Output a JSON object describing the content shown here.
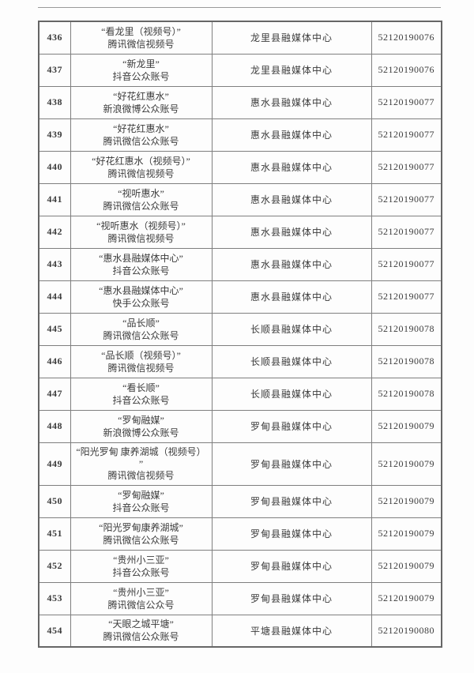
{
  "table": {
    "rows": [
      {
        "no": "436",
        "name_lines": [
          "“看龙里（视频号）”",
          "腾讯微信视频号"
        ],
        "organization": "龙里县融媒体中心",
        "license": "52120190076"
      },
      {
        "no": "437",
        "name_lines": [
          "“新龙里”",
          "抖音公众账号"
        ],
        "organization": "龙里县融媒体中心",
        "license": "52120190076"
      },
      {
        "no": "438",
        "name_lines": [
          "“好花红惠水”",
          "新浪微博公众账号"
        ],
        "organization": "惠水县融媒体中心",
        "license": "52120190077"
      },
      {
        "no": "439",
        "name_lines": [
          "“好花红惠水”",
          "腾讯微信公众账号"
        ],
        "organization": "惠水县融媒体中心",
        "license": "52120190077"
      },
      {
        "no": "440",
        "name_lines": [
          "“好花红惠水（视频号）”",
          "腾讯微信视频号"
        ],
        "organization": "惠水县融媒体中心",
        "license": "52120190077"
      },
      {
        "no": "441",
        "name_lines": [
          "“视听惠水”",
          "腾讯微信公众账号"
        ],
        "organization": "惠水县融媒体中心",
        "license": "52120190077"
      },
      {
        "no": "442",
        "name_lines": [
          "“视听惠水（视频号）”",
          "腾讯微信视频号"
        ],
        "organization": "惠水县融媒体中心",
        "license": "52120190077"
      },
      {
        "no": "443",
        "name_lines": [
          "“惠水县融媒体中心”",
          "抖音公众账号"
        ],
        "organization": "惠水县融媒体中心",
        "license": "52120190077"
      },
      {
        "no": "444",
        "name_lines": [
          "“惠水县融媒体中心”",
          "快手公众账号"
        ],
        "organization": "惠水县融媒体中心",
        "license": "52120190077"
      },
      {
        "no": "445",
        "name_lines": [
          "“品长顺”",
          "腾讯微信公众账号"
        ],
        "organization": "长顺县融媒体中心",
        "license": "52120190078"
      },
      {
        "no": "446",
        "name_lines": [
          "“品长顺（视频号）”",
          "腾讯微信视频号"
        ],
        "organization": "长顺县融媒体中心",
        "license": "52120190078"
      },
      {
        "no": "447",
        "name_lines": [
          "“看长顺”",
          "抖音公众账号"
        ],
        "organization": "长顺县融媒体中心",
        "license": "52120190078"
      },
      {
        "no": "448",
        "name_lines": [
          "“罗甸融媒”",
          "新浪微博公众账号"
        ],
        "organization": "罗甸县融媒体中心",
        "license": "52120190079"
      },
      {
        "no": "449",
        "name_lines": [
          "“阳光罗甸 康养湖城（视频号）",
          "”",
          "腾讯微信视频号"
        ],
        "organization": "罗甸县融媒体中心",
        "license": "52120190079"
      },
      {
        "no": "450",
        "name_lines": [
          "“罗甸融媒”",
          "抖音公众账号"
        ],
        "organization": "罗甸县融媒体中心",
        "license": "52120190079"
      },
      {
        "no": "451",
        "name_lines": [
          "“阳光罗甸康养湖城”",
          "腾讯微信公众账号"
        ],
        "organization": "罗甸县融媒体中心",
        "license": "52120190079"
      },
      {
        "no": "452",
        "name_lines": [
          "“贵州小三亚”",
          "抖音公众账号"
        ],
        "organization": "罗甸县融媒体中心",
        "license": "52120190079"
      },
      {
        "no": "453",
        "name_lines": [
          "“贵州小三亚”",
          "腾讯微信公众号"
        ],
        "organization": "罗甸县融媒体中心",
        "license": "52120190079"
      },
      {
        "no": "454",
        "name_lines": [
          "“天眼之城平塘”",
          "腾讯微信公众账号"
        ],
        "organization": "平塘县融媒体中心",
        "license": "52120190080"
      }
    ]
  }
}
